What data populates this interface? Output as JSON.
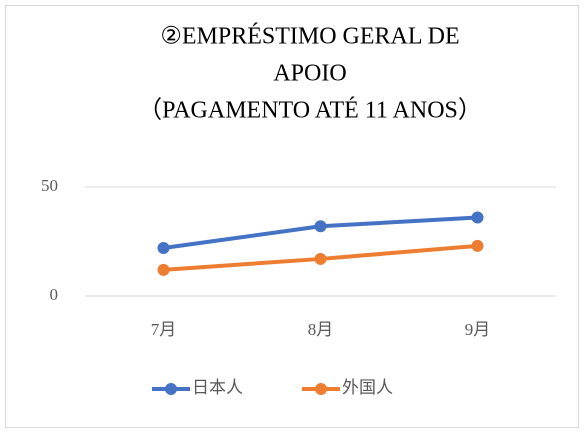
{
  "chart_data": {
    "type": "line",
    "title": [
      "②EMPRÉSTIMO GERAL DE",
      "APOIO",
      "（PAGAMENTO ATÉ 11 ANOS）"
    ],
    "categories": [
      "7月",
      "8月",
      "9月"
    ],
    "series": [
      {
        "name": "日本人",
        "color": "#4472c4",
        "values": [
          22,
          32,
          36
        ]
      },
      {
        "name": "外国人",
        "color": "#ed7d31",
        "values": [
          12,
          17,
          23
        ]
      }
    ],
    "ylim": [
      0,
      50
    ],
    "yticks": [
      0,
      50
    ],
    "grid": true,
    "legend": "bottom"
  }
}
